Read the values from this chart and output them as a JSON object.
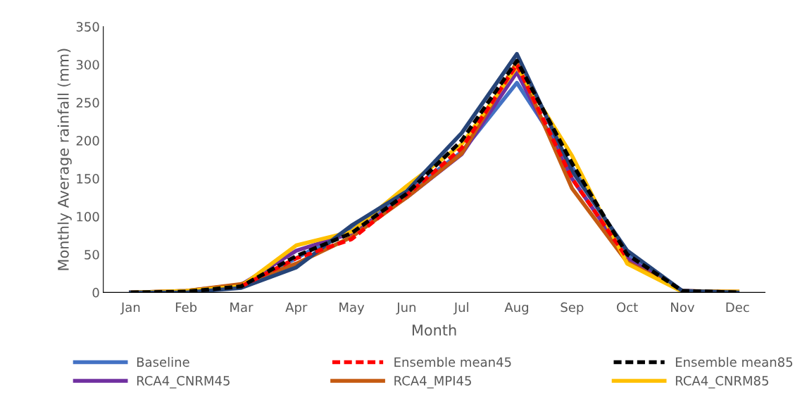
{
  "chart_data": {
    "type": "line",
    "xlabel": "Month",
    "ylabel": "Monthly Average rainfall (mm)",
    "categories": [
      "Jan",
      "Feb",
      "Mar",
      "Apr",
      "May",
      "Jun",
      "Jul",
      "Aug",
      "Sep",
      "Oct",
      "Nov",
      "Dec"
    ],
    "ylim": [
      0,
      350
    ],
    "yticks": [
      0,
      50,
      100,
      150,
      200,
      250,
      300,
      350
    ],
    "grid": false,
    "legend": "bottom",
    "marker": "none",
    "series": [
      {
        "name": "Baseline",
        "color": "#4472c4",
        "line_style": "solid",
        "values": [
          0,
          1,
          7,
          45,
          85,
          130,
          185,
          276,
          165,
          50,
          2,
          0
        ]
      },
      {
        "name": "Ensemble mean45",
        "color": "#ff0000",
        "line_style": "dashed",
        "values": [
          null,
          null,
          8,
          45,
          70,
          128,
          190,
          300,
          150,
          45,
          null,
          null
        ]
      },
      {
        "name": "Ensemble mean85",
        "color": "#000000",
        "line_style": "dashed",
        "values": [
          0,
          1,
          8,
          48,
          78,
          130,
          200,
          305,
          170,
          50,
          2,
          0
        ]
      },
      {
        "name": "RCA4_CNRM45",
        "color": "#7030a0",
        "line_style": "solid",
        "values": [
          0,
          2,
          10,
          55,
          78,
          125,
          182,
          290,
          150,
          45,
          2,
          0
        ]
      },
      {
        "name": "RCA4_MPI45",
        "color": "#c55a11",
        "line_style": "solid",
        "values": [
          0,
          2,
          11,
          38,
          73,
          125,
          183,
          303,
          137,
          40,
          2,
          1
        ]
      },
      {
        "name": "RCA4_CNRM85",
        "color": "#ffc000",
        "line_style": "solid",
        "values": [
          0,
          2,
          8,
          62,
          80,
          140,
          195,
          297,
          180,
          38,
          1,
          1
        ]
      },
      {
        "color": "#264478",
        "line_style": "solid",
        "values": [
          0,
          0,
          6,
          33,
          88,
          133,
          210,
          314,
          160,
          55,
          2,
          0
        ]
      }
    ]
  }
}
